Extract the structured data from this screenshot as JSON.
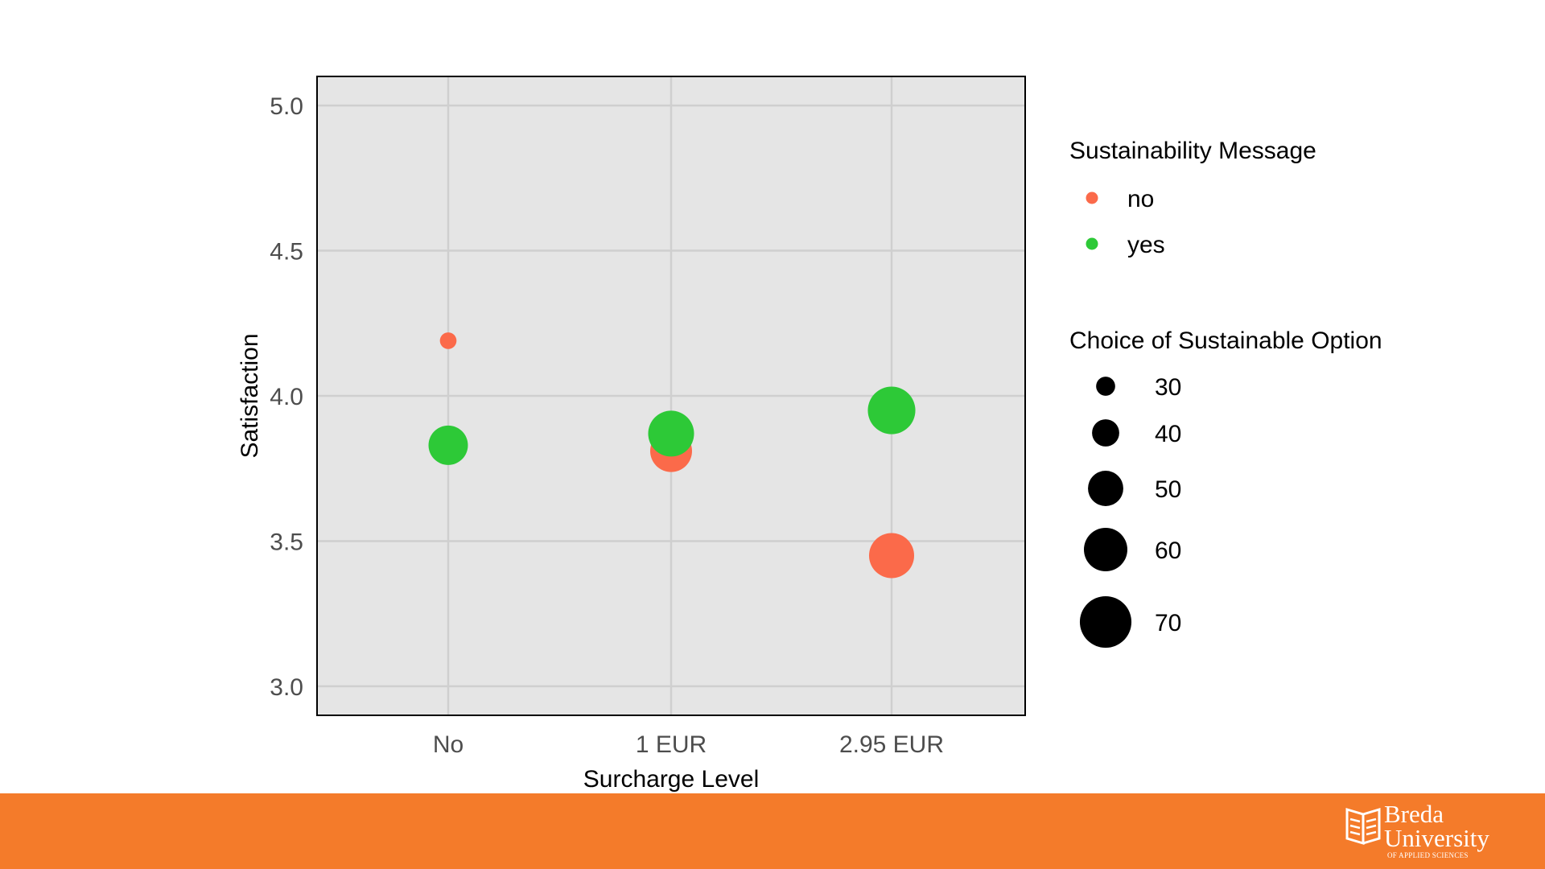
{
  "chart_data": {
    "type": "scatter",
    "x_categories": [
      "No",
      "1 EUR",
      "2.95 EUR"
    ],
    "xlabel": "Surcharge Level",
    "ylabel": "Satisfaction",
    "ylim": [
      2.9,
      5.1
    ],
    "yticks": [
      3.0,
      3.5,
      4.0,
      4.5,
      5.0
    ],
    "ytick_labels": [
      "3.0",
      "3.5",
      "4.0",
      "4.5",
      "5.0"
    ],
    "grid": true,
    "legend_position": "right",
    "color_legend": {
      "title": "Sustainability Message",
      "entries": [
        {
          "label": "no",
          "color": "#fb6a4a"
        },
        {
          "label": "yes",
          "color": "#2dc937"
        }
      ]
    },
    "size_legend": {
      "title": "Choice of Sustainable Option",
      "values": [
        30,
        40,
        50,
        60,
        70
      ],
      "labels": [
        "30",
        "40",
        "50",
        "60",
        "70"
      ]
    },
    "series": [
      {
        "name": "no",
        "color": "#fb6a4a",
        "points": [
          {
            "x": "No",
            "y": 4.19,
            "size": 27
          },
          {
            "x": "1 EUR",
            "y": 3.81,
            "size": 58
          },
          {
            "x": "2.95 EUR",
            "y": 3.45,
            "size": 62
          }
        ]
      },
      {
        "name": "yes",
        "color": "#2dc937",
        "points": [
          {
            "x": "No",
            "y": 3.83,
            "size": 55
          },
          {
            "x": "1 EUR",
            "y": 3.87,
            "size": 63
          },
          {
            "x": "2.95 EUR",
            "y": 3.95,
            "size": 65
          }
        ]
      }
    ]
  },
  "footer": {
    "background": "#f47b2a",
    "logo": {
      "word1": "Breda",
      "word2": "University",
      "subtitle": "OF APPLIED SCIENCES",
      "icon": "breda-logo-icon"
    }
  }
}
